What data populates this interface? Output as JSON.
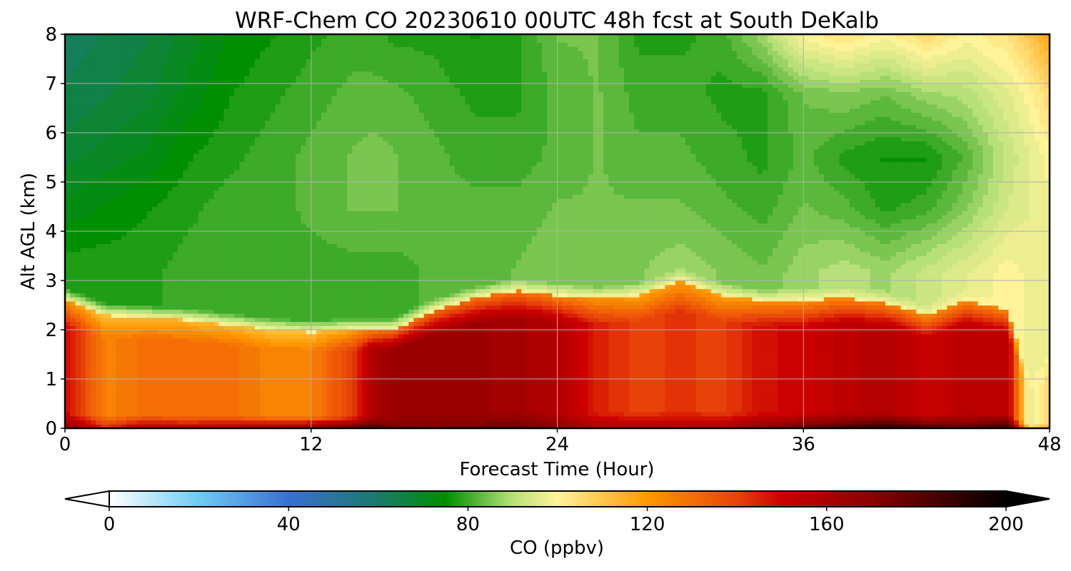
{
  "chart_data": {
    "type": "heatmap",
    "style": "filled-contour time-height cross-section",
    "title": "WRF-Chem CO  20230610 00UTC 48h fcst at South DeKalb",
    "xlabel": "Forecast Time (Hour)",
    "ylabel": "Alt AGL (km)",
    "xlim": [
      0,
      48
    ],
    "ylim": [
      0,
      8
    ],
    "xticks": [
      0,
      12,
      24,
      36,
      48
    ],
    "yticks": [
      0,
      1,
      2,
      3,
      4,
      5,
      6,
      7,
      8
    ],
    "grid": true,
    "colorbar": {
      "label": "CO  (ppbv)",
      "range": [
        0,
        200
      ],
      "ticks": [
        0,
        40,
        80,
        120,
        160,
        200
      ],
      "extend": "both",
      "stops": [
        {
          "value": 0,
          "color": "#ffffff"
        },
        {
          "value": 20,
          "color": "#6ecbf5"
        },
        {
          "value": 40,
          "color": "#3a6fd0"
        },
        {
          "value": 60,
          "color": "#1a7a6a"
        },
        {
          "value": 75,
          "color": "#008f00"
        },
        {
          "value": 90,
          "color": "#b8e07a"
        },
        {
          "value": 100,
          "color": "#fff39a"
        },
        {
          "value": 120,
          "color": "#ff9900"
        },
        {
          "value": 140,
          "color": "#e8420a"
        },
        {
          "value": 150,
          "color": "#cc0000"
        },
        {
          "value": 170,
          "color": "#8b0000"
        },
        {
          "value": 200,
          "color": "#000000"
        }
      ]
    },
    "x_hours": [
      0,
      2,
      4,
      6,
      8,
      10,
      12,
      14,
      15,
      16,
      18,
      20,
      22,
      24,
      26,
      28,
      30,
      32,
      34,
      36,
      38,
      40,
      42,
      44,
      46,
      47,
      48
    ],
    "altitudes_km": [
      0.05,
      0.5,
      1,
      1.5,
      2,
      2.5,
      3,
      3.5,
      4,
      5,
      6,
      7,
      8
    ],
    "boundary_layer_top_km": [
      2.6,
      2.3,
      2.25,
      2.2,
      2.1,
      2.0,
      1.95,
      2.0,
      2.0,
      2.0,
      2.4,
      2.65,
      2.8,
      2.7,
      2.65,
      2.7,
      3.0,
      2.7,
      2.6,
      2.6,
      2.65,
      2.55,
      2.3,
      2.6,
      2.4,
      0.8,
      1.4
    ],
    "bl_mean_co_ppbv": [
      150,
      125,
      130,
      130,
      130,
      125,
      126,
      140,
      160,
      165,
      165,
      165,
      162,
      158,
      145,
      140,
      142,
      140,
      148,
      150,
      155,
      158,
      152,
      155,
      155,
      95,
      105
    ],
    "sfc_co_ppbv": [
      170,
      145,
      160,
      155,
      160,
      165,
      170,
      180,
      185,
      175,
      172,
      175,
      178,
      170,
      160,
      160,
      158,
      160,
      170,
      178,
      185,
      192,
      185,
      180,
      190,
      110,
      115
    ],
    "free_trop_co_ppbv": [
      [
        78,
        72,
        68,
        64,
        62
      ],
      [
        78,
        74,
        70,
        66,
        64
      ],
      [
        78,
        76,
        72,
        68,
        66
      ],
      [
        80,
        78,
        76,
        72,
        70
      ],
      [
        80,
        80,
        78,
        76,
        74
      ],
      [
        80,
        80,
        80,
        78,
        76
      ],
      [
        80,
        82,
        82,
        80,
        78
      ],
      [
        80,
        84,
        84,
        82,
        80
      ],
      [
        80,
        84,
        85,
        82,
        80
      ],
      [
        80,
        84,
        84,
        82,
        78
      ],
      [
        82,
        82,
        82,
        80,
        78
      ],
      [
        82,
        82,
        80,
        78,
        76
      ],
      [
        84,
        82,
        80,
        78,
        78
      ],
      [
        86,
        84,
        82,
        82,
        84
      ],
      [
        84,
        84,
        84,
        84,
        84
      ],
      [
        86,
        84,
        82,
        80,
        78
      ],
      [
        88,
        84,
        82,
        80,
        78
      ],
      [
        86,
        82,
        80,
        78,
        80
      ],
      [
        84,
        80,
        78,
        78,
        88
      ],
      [
        88,
        84,
        82,
        84,
        100
      ],
      [
        90,
        82,
        78,
        86,
        104
      ],
      [
        88,
        78,
        76,
        84,
        100
      ],
      [
        92,
        80,
        76,
        88,
        106
      ],
      [
        96,
        86,
        82,
        90,
        100
      ],
      [
        100,
        94,
        92,
        96,
        104
      ],
      [
        98,
        96,
        96,
        100,
        110
      ],
      [
        96,
        98,
        100,
        106,
        118
      ]
    ],
    "free_trop_levels_km": [
      3.2,
      4.5,
      5.5,
      6.8,
      8.0
    ]
  }
}
